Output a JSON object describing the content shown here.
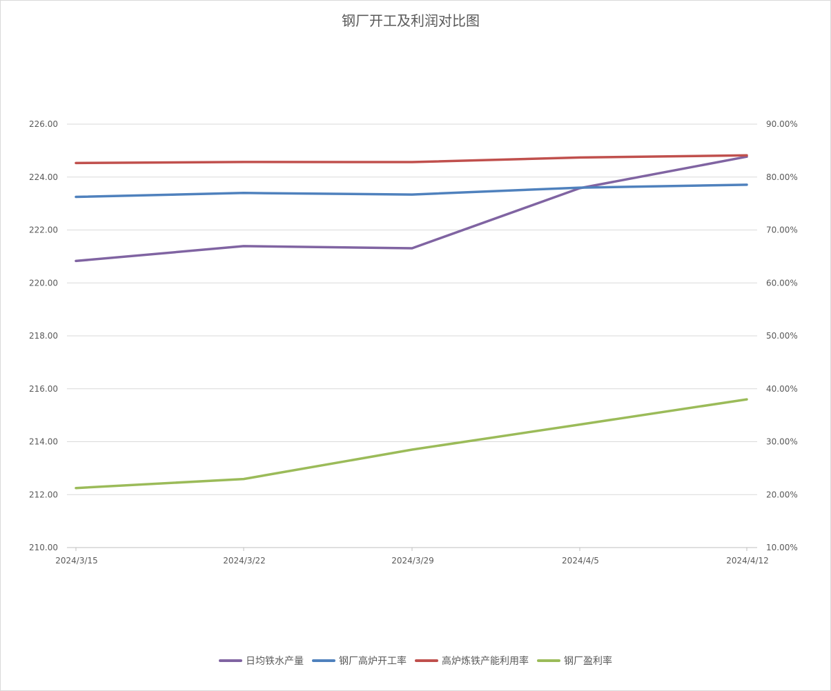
{
  "chart_data": {
    "type": "line",
    "title": "钢厂开工及利润对比图",
    "categories": [
      "2024/3/15",
      "2024/3/22",
      "2024/3/29",
      "2024/4/5",
      "2024/4/12"
    ],
    "left_axis": {
      "min": 210,
      "max": 226,
      "ticks": [
        "210.00",
        "212.00",
        "214.00",
        "216.00",
        "218.00",
        "220.00",
        "222.00",
        "224.00",
        "226.00"
      ]
    },
    "right_axis": {
      "min": 0.1,
      "max": 0.9,
      "ticks": [
        "10.00%",
        "20.00%",
        "30.00%",
        "40.00%",
        "50.00%",
        "60.00%",
        "70.00%",
        "80.00%",
        "90.00%"
      ]
    },
    "grid": true,
    "legend_position": "bottom",
    "series": [
      {
        "name": "日均铁水产量",
        "axis": "left",
        "color": "#8064a2",
        "values": [
          220.83,
          221.39,
          221.31,
          223.58,
          224.77
        ]
      },
      {
        "name": "钢厂高炉开工率",
        "axis": "right",
        "color": "#4f81bd",
        "values": [
          0.7625,
          0.77,
          0.767,
          0.78,
          0.7855
        ]
      },
      {
        "name": "高炉炼铁产能利用率",
        "axis": "right",
        "color": "#c0504d",
        "values": [
          0.8265,
          0.8285,
          0.8283,
          0.837,
          0.841
        ]
      },
      {
        "name": "钢厂盈利率",
        "axis": "right",
        "color": "#9bbb59",
        "values": [
          0.2125,
          0.2295,
          0.285,
          0.3325,
          0.38
        ]
      }
    ]
  }
}
